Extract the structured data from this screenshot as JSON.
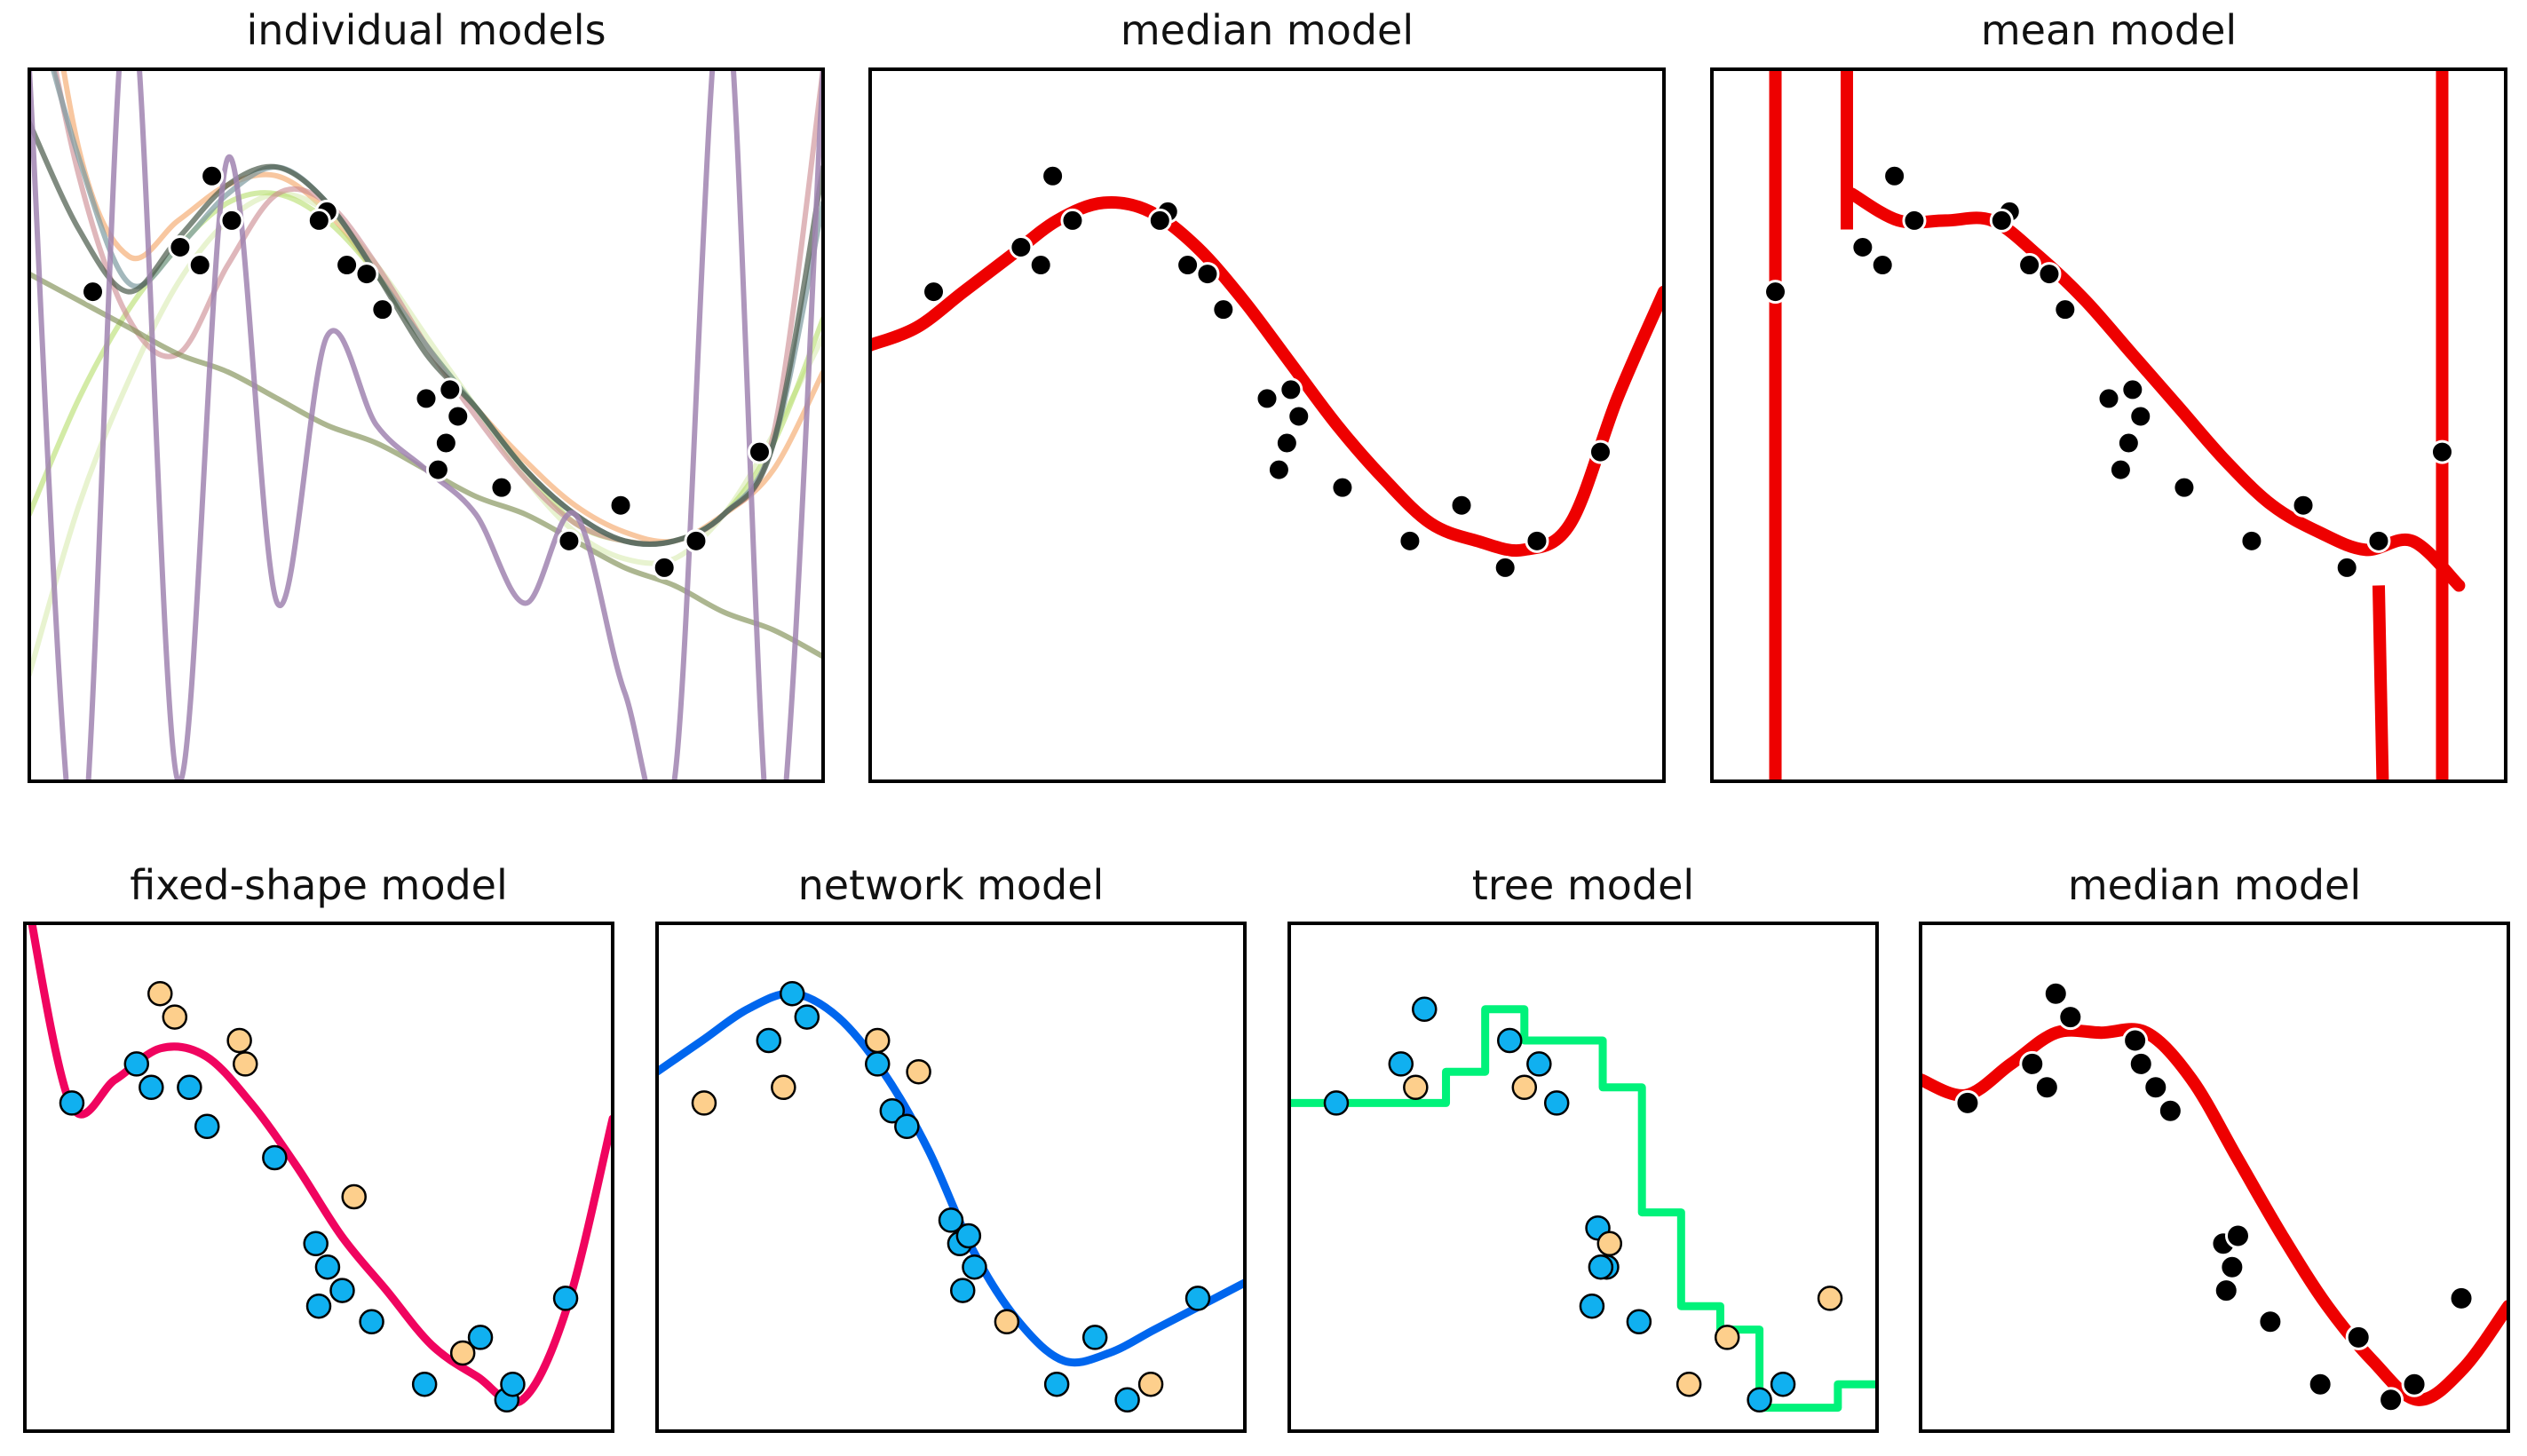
{
  "chart_data": [
    {
      "type": "line",
      "title": "individual models",
      "xlim": [
        0,
        20
      ],
      "ylim": [
        -4,
        4
      ],
      "points": [
        [
          1.6,
          1.5
        ],
        [
          3.8,
          2.0
        ],
        [
          4.3,
          1.8
        ],
        [
          4.6,
          2.8
        ],
        [
          5.1,
          2.3
        ],
        [
          7.5,
          2.4
        ],
        [
          7.3,
          2.3
        ],
        [
          8.0,
          1.8
        ],
        [
          8.5,
          1.7
        ],
        [
          8.9,
          1.3
        ],
        [
          10.0,
          0.3
        ],
        [
          10.6,
          0.4
        ],
        [
          10.8,
          0.1
        ],
        [
          10.5,
          -0.2
        ],
        [
          10.3,
          -0.5
        ],
        [
          11.9,
          -0.7
        ],
        [
          13.6,
          -1.3
        ],
        [
          14.9,
          -0.9
        ],
        [
          16.0,
          -1.6
        ],
        [
          16.8,
          -1.3
        ],
        [
          18.4,
          -0.3
        ]
      ],
      "series": [
        {
          "color": "#f4a261",
          "opacity": 0.6,
          "y": [
            6.5,
            3.1,
            1.9,
            2.3,
            2.7,
            2.8,
            2.4,
            1.7,
            0.9,
            0.2,
            -0.4,
            -0.9,
            -1.2,
            -1.3,
            -1.0,
            -0.5,
            0.6
          ]
        },
        {
          "color": "#d1e7a1",
          "opacity": 0.5,
          "y": [
            -2.8,
            -0.9,
            0.5,
            1.6,
            2.3,
            2.6,
            2.4,
            1.8,
            1.0,
            0.2,
            -0.6,
            -1.2,
            -1.5,
            -1.5,
            -1.0,
            -0.1,
            1.0
          ]
        },
        {
          "color": "#b5de6b",
          "opacity": 0.6,
          "y": [
            -1.0,
            0.3,
            1.3,
            2.0,
            2.5,
            2.6,
            2.3,
            1.7,
            0.9,
            0.2,
            -0.5,
            -1.1,
            -1.3,
            -1.3,
            -1.0,
            -0.2,
            1.2
          ]
        },
        {
          "color": "#c9878d",
          "opacity": 0.6,
          "y": [
            5.5,
            2.8,
            1.2,
            0.8,
            1.8,
            2.6,
            2.5,
            1.8,
            0.9,
            0.1,
            -0.6,
            -1.1,
            -1.3,
            -1.3,
            -1.0,
            -0.1,
            4.0
          ]
        },
        {
          "color": "#7c9aa0",
          "opacity": 0.7,
          "y": [
            5.0,
            3.0,
            1.6,
            2.0,
            2.6,
            2.9,
            2.5,
            1.7,
            0.9,
            0.2,
            -0.5,
            -1.0,
            -1.3,
            -1.3,
            -1.0,
            -0.2,
            2.5
          ]
        },
        {
          "color": "#4a5a4a",
          "opacity": 0.7,
          "y": [
            3.4,
            2.2,
            1.5,
            2.1,
            2.7,
            2.9,
            2.5,
            1.7,
            0.8,
            0.2,
            -0.5,
            -1.0,
            -1.3,
            -1.3,
            -1.0,
            -0.2,
            2.9
          ]
        },
        {
          "color": "#7f8f55",
          "opacity": 0.65,
          "y": [
            1.7,
            1.4,
            1.1,
            0.8,
            0.6,
            0.3,
            0.0,
            -0.2,
            -0.5,
            -0.8,
            -1.0,
            -1.3,
            -1.6,
            -1.8,
            -2.1,
            -2.3,
            -2.6
          ]
        },
        {
          "color": "#a084b0",
          "opacity": 0.85,
          "y": [
            4,
            -5,
            5,
            -4,
            3,
            -2,
            1,
            0,
            -0.5,
            -1,
            -2,
            -1,
            -3,
            -4,
            5,
            -5,
            4
          ]
        }
      ]
    },
    {
      "type": "line",
      "title": "median model",
      "xlim": [
        0,
        20
      ],
      "ylim": [
        -4,
        4
      ],
      "points": [
        [
          1.6,
          1.5
        ],
        [
          3.8,
          2.0
        ],
        [
          4.3,
          1.8
        ],
        [
          4.6,
          2.8
        ],
        [
          5.1,
          2.3
        ],
        [
          7.5,
          2.4
        ],
        [
          7.3,
          2.3
        ],
        [
          8.0,
          1.8
        ],
        [
          8.5,
          1.7
        ],
        [
          8.9,
          1.3
        ],
        [
          10.0,
          0.3
        ],
        [
          10.6,
          0.4
        ],
        [
          10.8,
          0.1
        ],
        [
          10.5,
          -0.2
        ],
        [
          10.3,
          -0.5
        ],
        [
          11.9,
          -0.7
        ],
        [
          13.6,
          -1.3
        ],
        [
          14.9,
          -0.9
        ],
        [
          16.0,
          -1.6
        ],
        [
          16.8,
          -1.3
        ],
        [
          18.4,
          -0.3
        ]
      ],
      "series": [
        {
          "color": "#ee0000",
          "y": [
            0.9,
            1.1,
            1.5,
            1.9,
            2.3,
            2.5,
            2.4,
            2.0,
            1.4,
            0.7,
            0.0,
            -0.6,
            -1.1,
            -1.3,
            -1.4,
            -1.1,
            0.3,
            1.5
          ]
        }
      ]
    },
    {
      "type": "line",
      "title": "mean model",
      "xlim": [
        0,
        20
      ],
      "ylim": [
        -4,
        4
      ],
      "points": [
        [
          1.6,
          1.5
        ],
        [
          3.8,
          2.0
        ],
        [
          4.3,
          1.8
        ],
        [
          4.6,
          2.8
        ],
        [
          5.1,
          2.3
        ],
        [
          7.5,
          2.4
        ],
        [
          7.3,
          2.3
        ],
        [
          8.0,
          1.8
        ],
        [
          8.5,
          1.7
        ],
        [
          8.9,
          1.3
        ],
        [
          10.0,
          0.3
        ],
        [
          10.6,
          0.4
        ],
        [
          10.8,
          0.1
        ],
        [
          10.5,
          -0.2
        ],
        [
          10.3,
          -0.5
        ],
        [
          11.9,
          -0.7
        ],
        [
          13.6,
          -1.3
        ],
        [
          14.9,
          -0.9
        ],
        [
          16.0,
          -1.6
        ],
        [
          16.8,
          -1.3
        ],
        [
          18.4,
          -0.3
        ]
      ],
      "series": [
        {
          "color": "#ee0000",
          "y": [
            null,
            null,
            null,
            2.6,
            2.3,
            2.3,
            2.3,
            1.9,
            1.4,
            0.8,
            0.2,
            -0.4,
            -0.9,
            -1.2,
            -1.4,
            -1.3,
            -1.8,
            null
          ]
        }
      ]
    },
    {
      "type": "line",
      "title": "fixed-shape model",
      "xlim": [
        0,
        20
      ],
      "ylim": [
        -4,
        2.5
      ],
      "points": [
        [
          1.6,
          0.2
        ],
        [
          3.8,
          0.7
        ],
        [
          4.3,
          0.4
        ],
        [
          5.6,
          0.4
        ],
        [
          6.2,
          -0.1
        ],
        [
          8.5,
          -0.5
        ],
        [
          9.9,
          -1.6
        ],
        [
          10.3,
          -1.9
        ],
        [
          10.8,
          -2.2
        ],
        [
          10.0,
          -2.4
        ],
        [
          11.8,
          -2.6
        ],
        [
          13.6,
          -3.4
        ],
        [
          15.5,
          -2.8
        ],
        [
          16.4,
          -3.6
        ],
        [
          16.6,
          -3.4
        ],
        [
          18.4,
          -2.3
        ]
      ],
      "points_alt": [
        [
          4.6,
          1.6
        ],
        [
          5.1,
          1.3
        ],
        [
          7.5,
          0.7
        ],
        [
          7.3,
          1.0
        ],
        [
          11.2,
          -1.0
        ],
        [
          14.9,
          -3.0
        ]
      ],
      "series": [
        {
          "color": "#f0045f",
          "y": [
            3.0,
            0.2,
            0.5,
            0.9,
            0.8,
            0.2,
            -0.6,
            -1.5,
            -2.2,
            -2.9,
            -3.3,
            -3.6,
            -2.4,
            0.0
          ]
        }
      ]
    },
    {
      "type": "line",
      "title": "network model",
      "xlim": [
        0,
        20
      ],
      "ylim": [
        -4,
        2.5
      ],
      "points": [
        [
          3.8,
          1.0
        ],
        [
          4.6,
          1.6
        ],
        [
          5.1,
          1.3
        ],
        [
          7.5,
          0.7
        ],
        [
          8.0,
          0.1
        ],
        [
          8.5,
          -0.1
        ],
        [
          10.0,
          -1.3
        ],
        [
          10.3,
          -1.6
        ],
        [
          10.6,
          -1.5
        ],
        [
          10.8,
          -1.9
        ],
        [
          10.4,
          -2.2
        ],
        [
          13.6,
          -3.4
        ],
        [
          14.9,
          -2.8
        ],
        [
          16.0,
          -3.6
        ],
        [
          18.4,
          -2.3
        ]
      ],
      "points_alt": [
        [
          1.6,
          0.2
        ],
        [
          4.3,
          0.4
        ],
        [
          7.5,
          1.0
        ],
        [
          8.9,
          0.6
        ],
        [
          11.9,
          -2.6
        ],
        [
          16.8,
          -3.4
        ]
      ],
      "series": [
        {
          "color": "#0066ee",
          "y": [
            0.6,
            1.0,
            1.4,
            1.6,
            1.3,
            0.6,
            -0.4,
            -1.7,
            -2.6,
            -3.1,
            -3.0,
            -2.7,
            -2.4,
            -2.1
          ]
        }
      ]
    },
    {
      "type": "line",
      "title": "tree model",
      "xlim": [
        0,
        20
      ],
      "ylim": [
        -4,
        2.5
      ],
      "points": [
        [
          1.6,
          0.2
        ],
        [
          3.8,
          0.7
        ],
        [
          4.6,
          1.4
        ],
        [
          7.5,
          1.0
        ],
        [
          8.5,
          0.7
        ],
        [
          9.1,
          0.2
        ],
        [
          10.5,
          -1.4
        ],
        [
          10.8,
          -1.9
        ],
        [
          10.6,
          -1.9
        ],
        [
          10.3,
          -2.4
        ],
        [
          11.9,
          -2.6
        ],
        [
          16.0,
          -3.6
        ],
        [
          16.8,
          -3.4
        ]
      ],
      "points_alt": [
        [
          4.3,
          0.4
        ],
        [
          8.0,
          0.4
        ],
        [
          10.9,
          -1.6
        ],
        [
          13.6,
          -3.4
        ],
        [
          14.9,
          -2.8
        ],
        [
          18.4,
          -2.3
        ]
      ],
      "series": [
        {
          "color": "#00f27a",
          "y": [
            0.2,
            0.2,
            0.2,
            0.2,
            0.6,
            1.4,
            1.0,
            1.0,
            0.4,
            -1.2,
            -2.4,
            -2.7,
            -3.7,
            -3.7,
            -3.4,
            -3.4
          ]
        }
      ]
    },
    {
      "type": "line",
      "title": "median model",
      "xlim": [
        0,
        20
      ],
      "ylim": [
        -4,
        2.5
      ],
      "points": [
        [
          1.6,
          0.2
        ],
        [
          3.8,
          0.7
        ],
        [
          4.3,
          0.4
        ],
        [
          4.6,
          1.6
        ],
        [
          5.1,
          1.3
        ],
        [
          7.5,
          0.7
        ],
        [
          7.3,
          1.0
        ],
        [
          8.0,
          0.4
        ],
        [
          8.5,
          0.1
        ],
        [
          10.3,
          -1.6
        ],
        [
          10.8,
          -1.5
        ],
        [
          10.6,
          -1.9
        ],
        [
          10.4,
          -2.2
        ],
        [
          11.9,
          -2.6
        ],
        [
          13.6,
          -3.4
        ],
        [
          14.9,
          -2.8
        ],
        [
          16.0,
          -3.6
        ],
        [
          16.8,
          -3.4
        ],
        [
          18.4,
          -2.3
        ]
      ],
      "series": [
        {
          "color": "#ee0000",
          "y": [
            0.5,
            0.3,
            0.7,
            1.1,
            1.1,
            1.1,
            0.5,
            -0.5,
            -1.5,
            -2.4,
            -3.1,
            -3.6,
            -3.2,
            -2.4
          ]
        }
      ]
    }
  ],
  "colors": {
    "frame": "#000000",
    "point_black": "#000000",
    "point_blue": "#10b0f0",
    "point_orange": "#fdcf8c"
  }
}
